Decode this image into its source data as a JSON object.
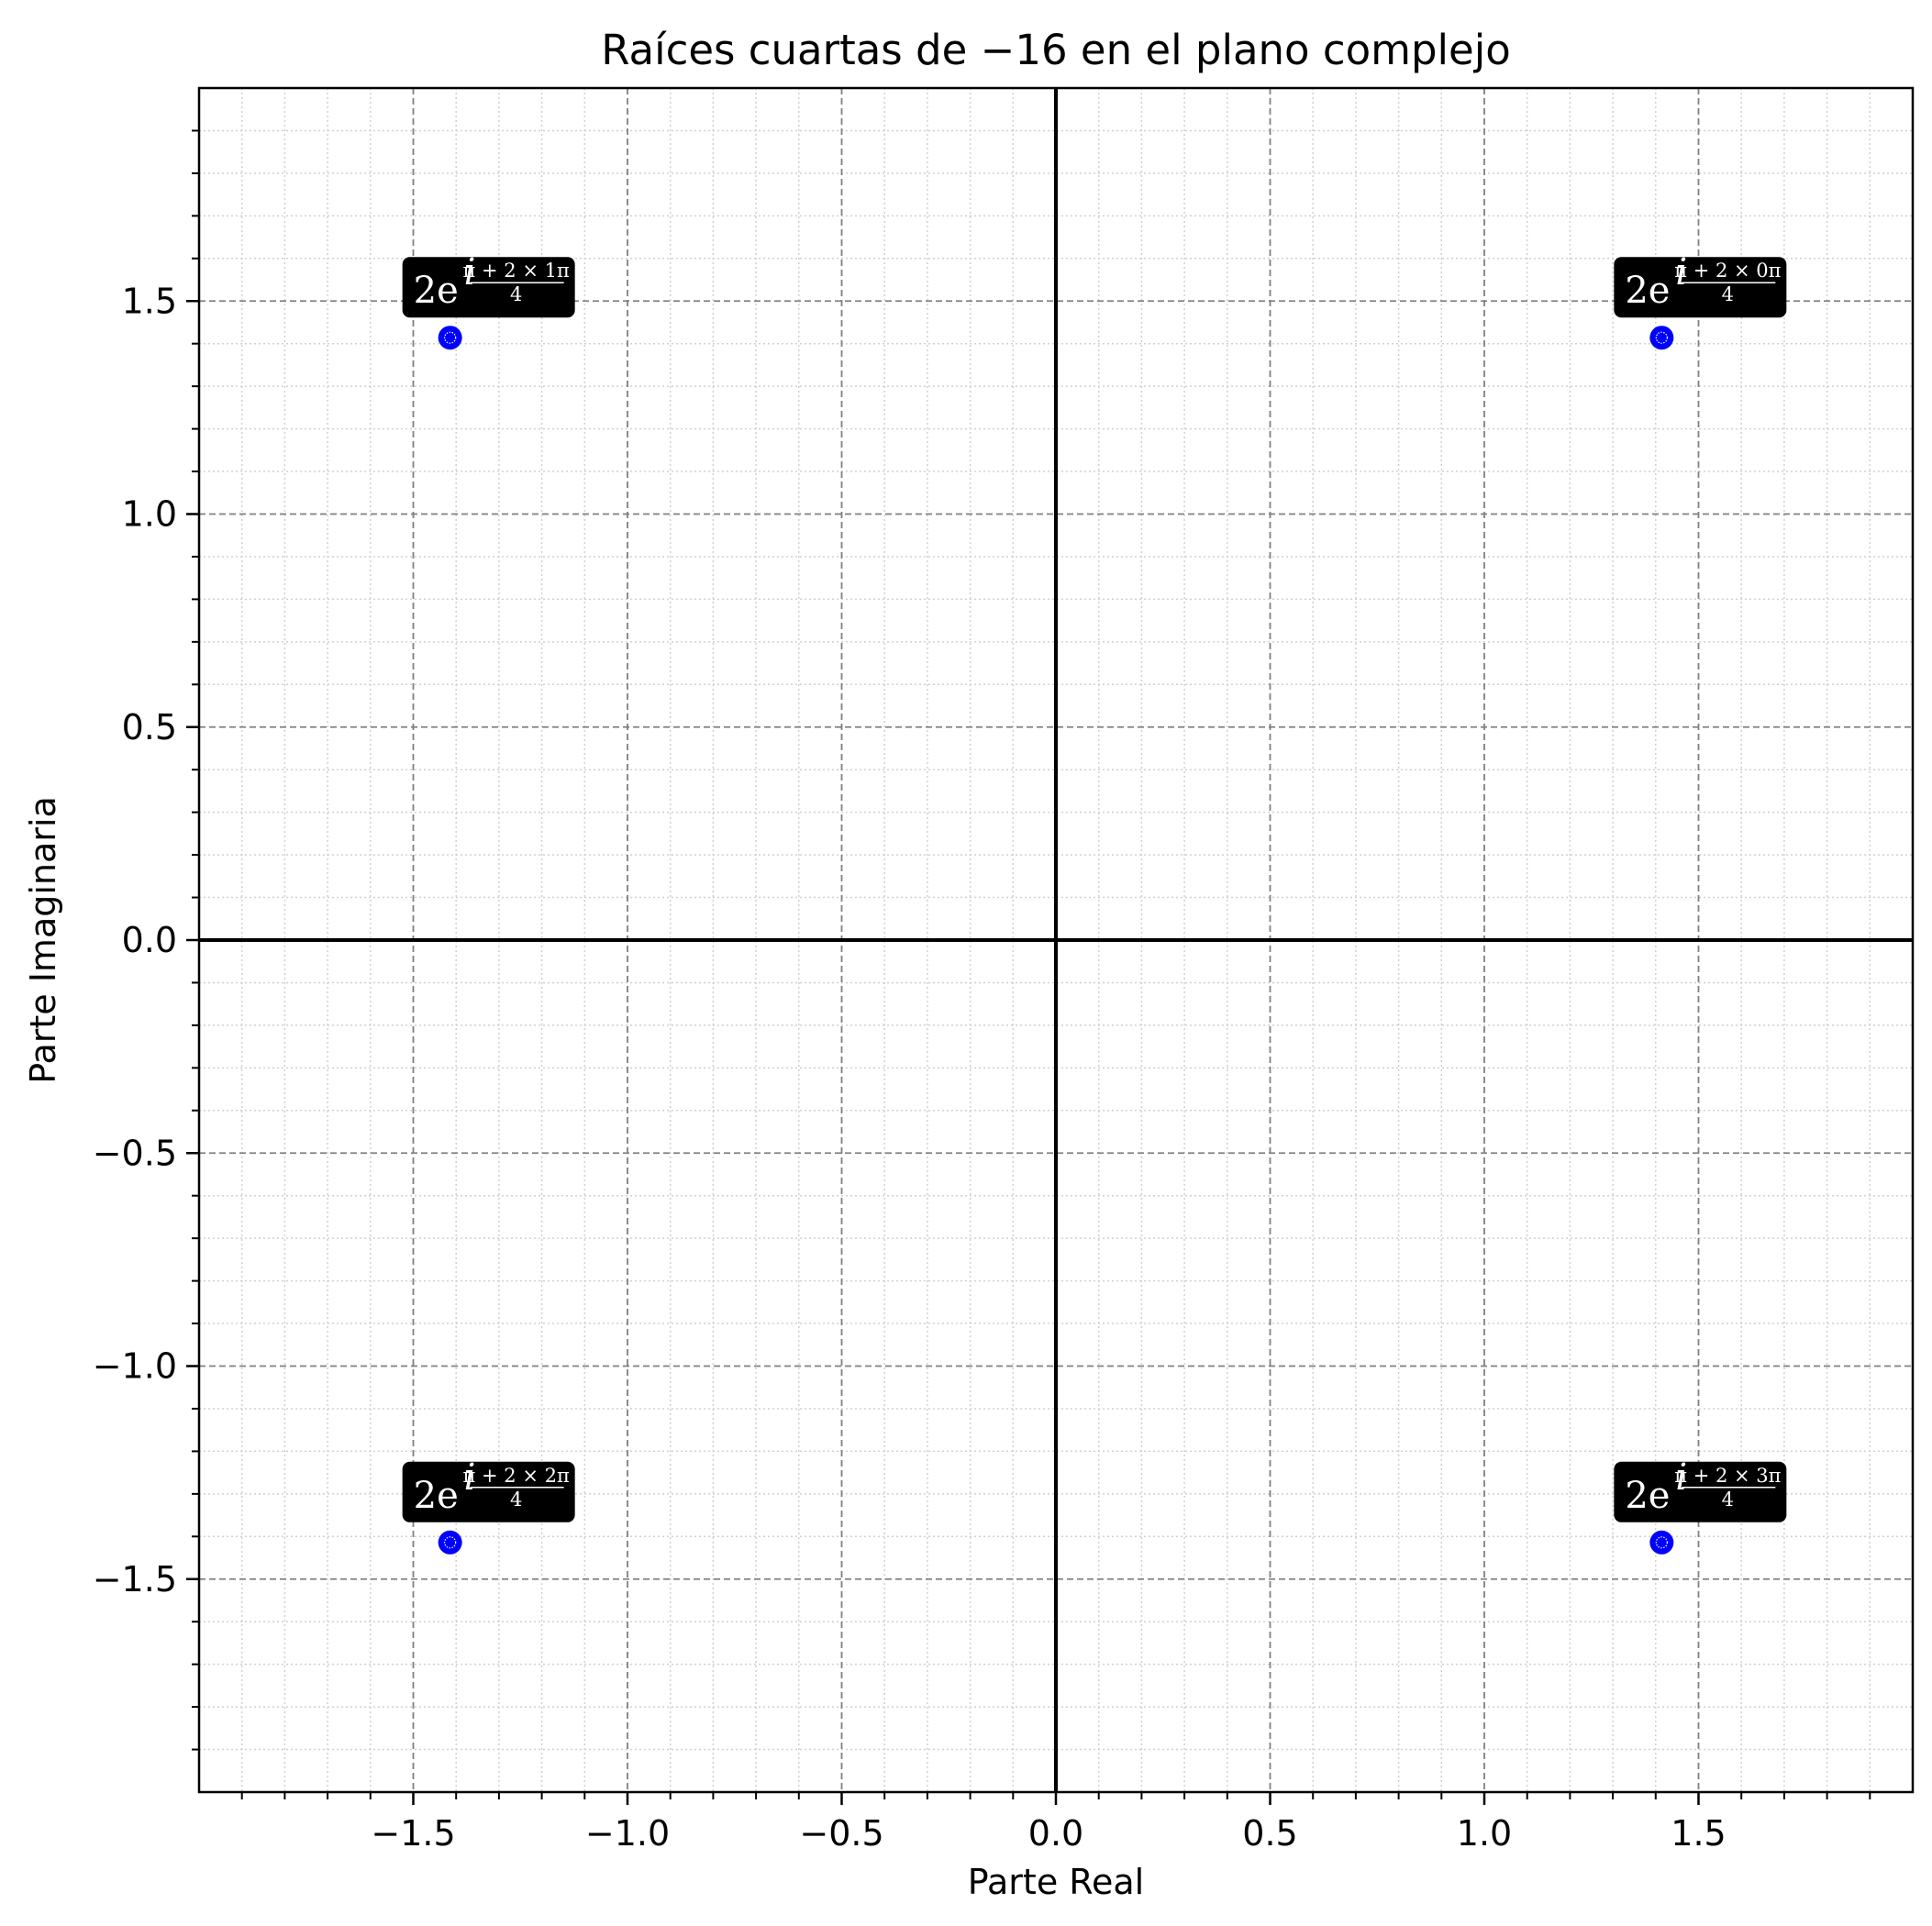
{
  "chart_data": {
    "type": "scatter",
    "title": "Raíces cuartas de −16 en el plano complejo",
    "xlabel": "Parte Real",
    "ylabel": "Parte Imaginaria",
    "xlim": [
      -2,
      2
    ],
    "ylim": [
      -2,
      2
    ],
    "xticks": [
      -1.5,
      -1.0,
      -0.5,
      0.0,
      0.5,
      1.0,
      1.5
    ],
    "xtick_labels": [
      "−1.5",
      "−1.0",
      "−0.5",
      "0.0",
      "0.5",
      "1.0",
      "1.5"
    ],
    "yticks": [
      -1.5,
      -1.0,
      -0.5,
      0.0,
      0.5,
      1.0,
      1.5
    ],
    "ytick_labels": [
      "−1.5",
      "−1.0",
      "−0.5",
      "0.0",
      "0.5",
      "1.0",
      "1.5"
    ],
    "grid": "major dashed, minor dotted",
    "marker_color": "#0000ff",
    "label_box_color": "#000000",
    "points": [
      {
        "x": 1.414,
        "y": 1.414,
        "label_main": "2e",
        "label_exp_num": "π + 2 × 0π",
        "label_exp_den": "4"
      },
      {
        "x": -1.414,
        "y": 1.414,
        "label_main": "2e",
        "label_exp_num": "π + 2 × 1π",
        "label_exp_den": "4"
      },
      {
        "x": -1.414,
        "y": -1.414,
        "label_main": "2e",
        "label_exp_num": "π + 2 × 2π",
        "label_exp_den": "4"
      },
      {
        "x": 1.414,
        "y": -1.414,
        "label_main": "2e",
        "label_exp_num": "π + 2 × 3π",
        "label_exp_den": "4"
      }
    ]
  }
}
